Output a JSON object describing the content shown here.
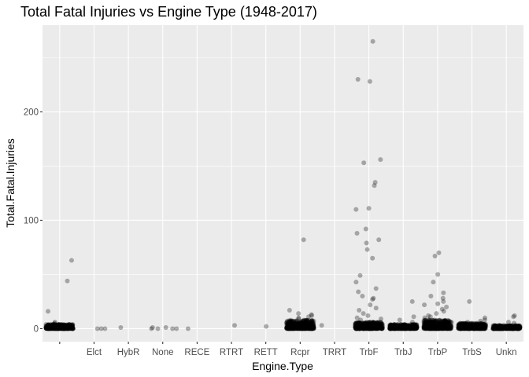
{
  "chart_data": {
    "type": "scatter",
    "title": "Total Fatal Injuries vs Engine Type (1948-2017)",
    "xlabel": "Engine.Type",
    "ylabel": "Total.Fatal.Injuries",
    "categories": [
      "",
      "Elct",
      "HybR",
      "None",
      "RECE",
      "RTRT",
      "RETT",
      "Rcpr",
      "TRRT",
      "TrbF",
      "TrbJ",
      "TrbP",
      "TrbS",
      "Unkn"
    ],
    "y_ticks": [
      0,
      100,
      200
    ],
    "ylim": [
      -12,
      280
    ],
    "grid": true,
    "legend": "none",
    "point_color": "#000000",
    "point_alpha": 0.3,
    "panel_background": "#ebebeb",
    "grid_color": "#ffffff",
    "points": [
      {
        "category": "",
        "y": 44
      },
      {
        "category": "",
        "y": 16
      },
      {
        "category": "",
        "y": 63
      },
      {
        "category": "",
        "y": 6
      },
      {
        "category": "",
        "y": 5
      },
      {
        "category": "Elct",
        "y": 0
      },
      {
        "category": "Elct",
        "y": 0
      },
      {
        "category": "Elct",
        "y": 0
      },
      {
        "category": "HybR",
        "y": 1
      },
      {
        "category": "None",
        "y": 0
      },
      {
        "category": "None",
        "y": 0
      },
      {
        "category": "None",
        "y": 0
      },
      {
        "category": "None",
        "y": 1
      },
      {
        "category": "None",
        "y": 0
      },
      {
        "category": "None",
        "y": 1
      },
      {
        "category": "RECE",
        "y": 0
      },
      {
        "category": "RTRT",
        "y": 3
      },
      {
        "category": "RETT",
        "y": 2
      },
      {
        "category": "Rcpr",
        "y": 82
      },
      {
        "category": "Rcpr",
        "y": 17
      },
      {
        "category": "Rcpr",
        "y": 14
      },
      {
        "category": "Rcpr",
        "y": 13
      },
      {
        "category": "Rcpr",
        "y": 12
      },
      {
        "category": "Rcpr",
        "y": 11
      },
      {
        "category": "Rcpr",
        "y": 10
      },
      {
        "category": "Rcpr",
        "y": 9
      },
      {
        "category": "TRRT",
        "y": 3
      },
      {
        "category": "TrbF",
        "y": 265
      },
      {
        "category": "TrbF",
        "y": 230
      },
      {
        "category": "TrbF",
        "y": 228
      },
      {
        "category": "TrbF",
        "y": 156
      },
      {
        "category": "TrbF",
        "y": 153
      },
      {
        "category": "TrbF",
        "y": 135
      },
      {
        "category": "TrbF",
        "y": 132
      },
      {
        "category": "TrbF",
        "y": 111
      },
      {
        "category": "TrbF",
        "y": 110
      },
      {
        "category": "TrbF",
        "y": 92
      },
      {
        "category": "TrbF",
        "y": 88
      },
      {
        "category": "TrbF",
        "y": 82
      },
      {
        "category": "TrbF",
        "y": 79
      },
      {
        "category": "TrbF",
        "y": 73
      },
      {
        "category": "TrbF",
        "y": 65
      },
      {
        "category": "TrbF",
        "y": 49
      },
      {
        "category": "TrbF",
        "y": 43
      },
      {
        "category": "TrbF",
        "y": 37
      },
      {
        "category": "TrbF",
        "y": 34
      },
      {
        "category": "TrbF",
        "y": 30
      },
      {
        "category": "TrbF",
        "y": 28
      },
      {
        "category": "TrbF",
        "y": 27
      },
      {
        "category": "TrbF",
        "y": 22
      },
      {
        "category": "TrbF",
        "y": 19
      },
      {
        "category": "TrbF",
        "y": 17
      },
      {
        "category": "TrbF",
        "y": 14
      },
      {
        "category": "TrbF",
        "y": 12
      },
      {
        "category": "TrbF",
        "y": 10
      },
      {
        "category": "TrbF",
        "y": 9
      },
      {
        "category": "TrbF",
        "y": 8
      },
      {
        "category": "TrbJ",
        "y": 25
      },
      {
        "category": "TrbJ",
        "y": 11
      },
      {
        "category": "TrbJ",
        "y": 8
      },
      {
        "category": "TrbJ",
        "y": 6
      },
      {
        "category": "TrbP",
        "y": 70
      },
      {
        "category": "TrbP",
        "y": 67
      },
      {
        "category": "TrbP",
        "y": 50
      },
      {
        "category": "TrbP",
        "y": 43
      },
      {
        "category": "TrbP",
        "y": 33
      },
      {
        "category": "TrbP",
        "y": 30
      },
      {
        "category": "TrbP",
        "y": 28
      },
      {
        "category": "TrbP",
        "y": 25
      },
      {
        "category": "TrbP",
        "y": 23
      },
      {
        "category": "TrbP",
        "y": 22
      },
      {
        "category": "TrbP",
        "y": 20
      },
      {
        "category": "TrbP",
        "y": 18
      },
      {
        "category": "TrbP",
        "y": 16
      },
      {
        "category": "TrbP",
        "y": 14
      },
      {
        "category": "TrbP",
        "y": 12
      },
      {
        "category": "TrbP",
        "y": 11
      },
      {
        "category": "TrbP",
        "y": 10
      },
      {
        "category": "TrbS",
        "y": 25
      },
      {
        "category": "TrbS",
        "y": 10
      },
      {
        "category": "TrbS",
        "y": 8
      },
      {
        "category": "TrbS",
        "y": 7
      },
      {
        "category": "TrbS",
        "y": 6
      },
      {
        "category": "TrbS",
        "y": 5
      },
      {
        "category": "Unkn",
        "y": 12
      },
      {
        "category": "Unkn",
        "y": 11
      },
      {
        "category": "Unkn",
        "y": 6
      },
      {
        "category": "Unkn",
        "y": 5
      }
    ],
    "dense_clusters": [
      {
        "category": "",
        "y_range": [
          0,
          4
        ]
      },
      {
        "category": "Rcpr",
        "y_range": [
          0,
          8
        ]
      },
      {
        "category": "TrbF",
        "y_range": [
          0,
          6
        ]
      },
      {
        "category": "TrbJ",
        "y_range": [
          0,
          4
        ]
      },
      {
        "category": "TrbP",
        "y_range": [
          0,
          8
        ]
      },
      {
        "category": "TrbS",
        "y_range": [
          0,
          5
        ]
      },
      {
        "category": "Unkn",
        "y_range": [
          0,
          3
        ]
      }
    ]
  }
}
